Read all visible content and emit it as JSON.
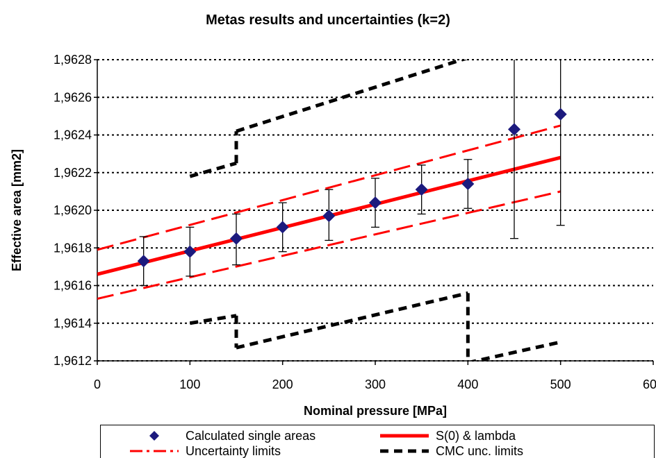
{
  "chart_data": {
    "type": "scatter",
    "title": "Metas results and uncertainties (k=2)",
    "xlabel": "Nominal pressure [MPa]",
    "ylabel": "Effective area [mm2]",
    "xlim": [
      0,
      600
    ],
    "ylim": [
      1.9612,
      1.9628
    ],
    "x_ticks": [
      0,
      100,
      200,
      300,
      400,
      500,
      600
    ],
    "x_tick_labels": [
      "0",
      "100",
      "200",
      "300",
      "400",
      "500",
      "600"
    ],
    "y_ticks": [
      1.9612,
      1.9614,
      1.9616,
      1.9618,
      1.962,
      1.9622,
      1.9624,
      1.9626,
      1.9628
    ],
    "y_tick_labels": [
      "1,9612",
      "1,9614",
      "1,9616",
      "1,9618",
      "1,9620",
      "1,9622",
      "1,9624",
      "1,9626",
      "1,9628"
    ],
    "grid": "horizontal dotted",
    "legend_position": "bottom",
    "points": {
      "name": "Calculated single areas",
      "color": "#1c1a7e",
      "x": [
        50,
        100,
        150,
        200,
        250,
        300,
        350,
        400,
        450,
        500
      ],
      "y": [
        1.96173,
        1.96178,
        1.96185,
        1.96191,
        1.96197,
        1.96204,
        1.96211,
        1.96214,
        1.96243,
        1.96251
      ],
      "err_low": [
        1.9616,
        1.96165,
        1.96171,
        1.96178,
        1.96184,
        1.96191,
        1.96198,
        1.96201,
        1.96185,
        1.96192
      ],
      "err_high": [
        1.96186,
        1.96191,
        1.96198,
        1.96204,
        1.96211,
        1.96217,
        1.96224,
        1.96227,
        1.9628,
        1.9628
      ]
    },
    "fit_line": {
      "name": "S(0) & lambda",
      "color": "#ff0000",
      "x": [
        0,
        500
      ],
      "y": [
        1.96166,
        1.96228
      ]
    },
    "uncertainty_limits": {
      "name": "Uncertainty limits",
      "color": "#ff0000",
      "upper": {
        "x": [
          0,
          500
        ],
        "y": [
          1.96179,
          1.96245
        ]
      },
      "lower": {
        "x": [
          0,
          500
        ],
        "y": [
          1.96153,
          1.9621
        ]
      }
    },
    "cmc_limits": {
      "name": "CMC unc. limits",
      "color": "#000000",
      "upper_segments": [
        {
          "x": [
            100,
            150
          ],
          "y": [
            1.96218,
            1.96225
          ]
        },
        {
          "x": [
            150,
            400
          ],
          "y": [
            1.96242,
            1.96281
          ]
        }
      ],
      "lower_segments": [
        {
          "x": [
            100,
            150
          ],
          "y": [
            1.9614,
            1.96144
          ]
        },
        {
          "x": [
            150,
            400
          ],
          "y": [
            1.96127,
            1.96156
          ]
        },
        {
          "x": [
            400,
            500
          ],
          "y": [
            1.96119,
            1.9613
          ]
        }
      ],
      "vertical_segments": [
        {
          "x": 150,
          "y": [
            1.96225,
            1.96242
          ]
        },
        {
          "x": 150,
          "y": [
            1.96144,
            1.96127
          ]
        },
        {
          "x": 400,
          "y": [
            1.96281,
            1.9628
          ]
        },
        {
          "x": 400,
          "y": [
            1.96156,
            1.96119
          ]
        }
      ]
    }
  },
  "legend": {
    "items": [
      "Calculated single areas",
      "S(0) & lambda",
      "Uncertainty limits",
      "CMC unc. limits"
    ]
  }
}
